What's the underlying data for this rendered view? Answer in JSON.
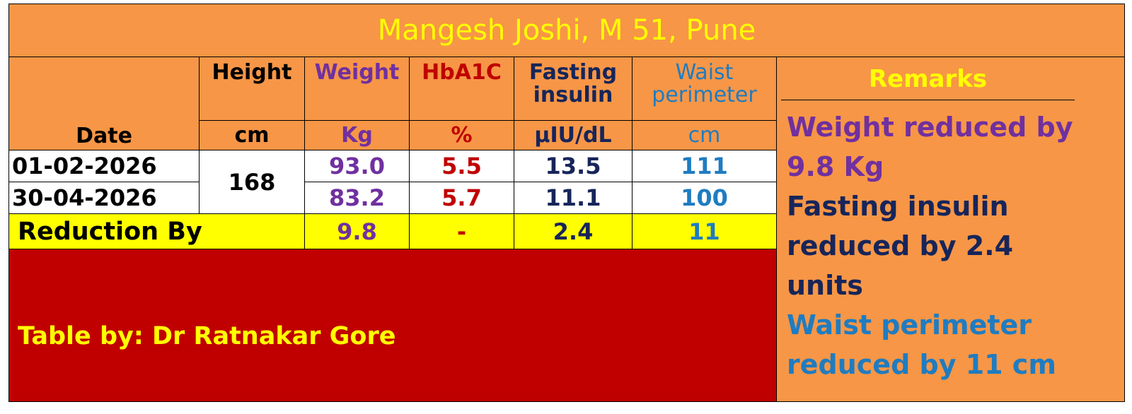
{
  "title": "Mangesh Joshi, M 51, Pune",
  "table": {
    "headers": {
      "date": "Date",
      "height": [
        "Height",
        "cm"
      ],
      "weight": [
        "Weight",
        "Kg"
      ],
      "hba1c": [
        "HbA1C",
        "%"
      ],
      "insulin": [
        "Fasting insulin",
        "µIU/dL"
      ],
      "waist": [
        "Waist perimeter",
        "cm"
      ]
    },
    "height": "168",
    "rows": [
      {
        "date": "01-02-2026",
        "weight": "93.0",
        "hba1c": "5.5",
        "insulin": "13.5",
        "waist": "111"
      },
      {
        "date": "30-04-2026",
        "weight": "83.2",
        "hba1c": "5.7",
        "insulin": "11.1",
        "waist": "100"
      }
    ],
    "reduction": {
      "label": "Reduction By",
      "weight": "9.8",
      "hba1c": "-",
      "insulin": "2.4",
      "waist": "11"
    }
  },
  "credit": "Table by: Dr Ratnakar Gore",
  "remarks": {
    "title": "Remarks",
    "items": [
      "Weight reduced by 9.8 Kg",
      "Fasting insulin reduced by 2.4 units",
      "Waist perimeter reduced by 11 cm"
    ]
  }
}
